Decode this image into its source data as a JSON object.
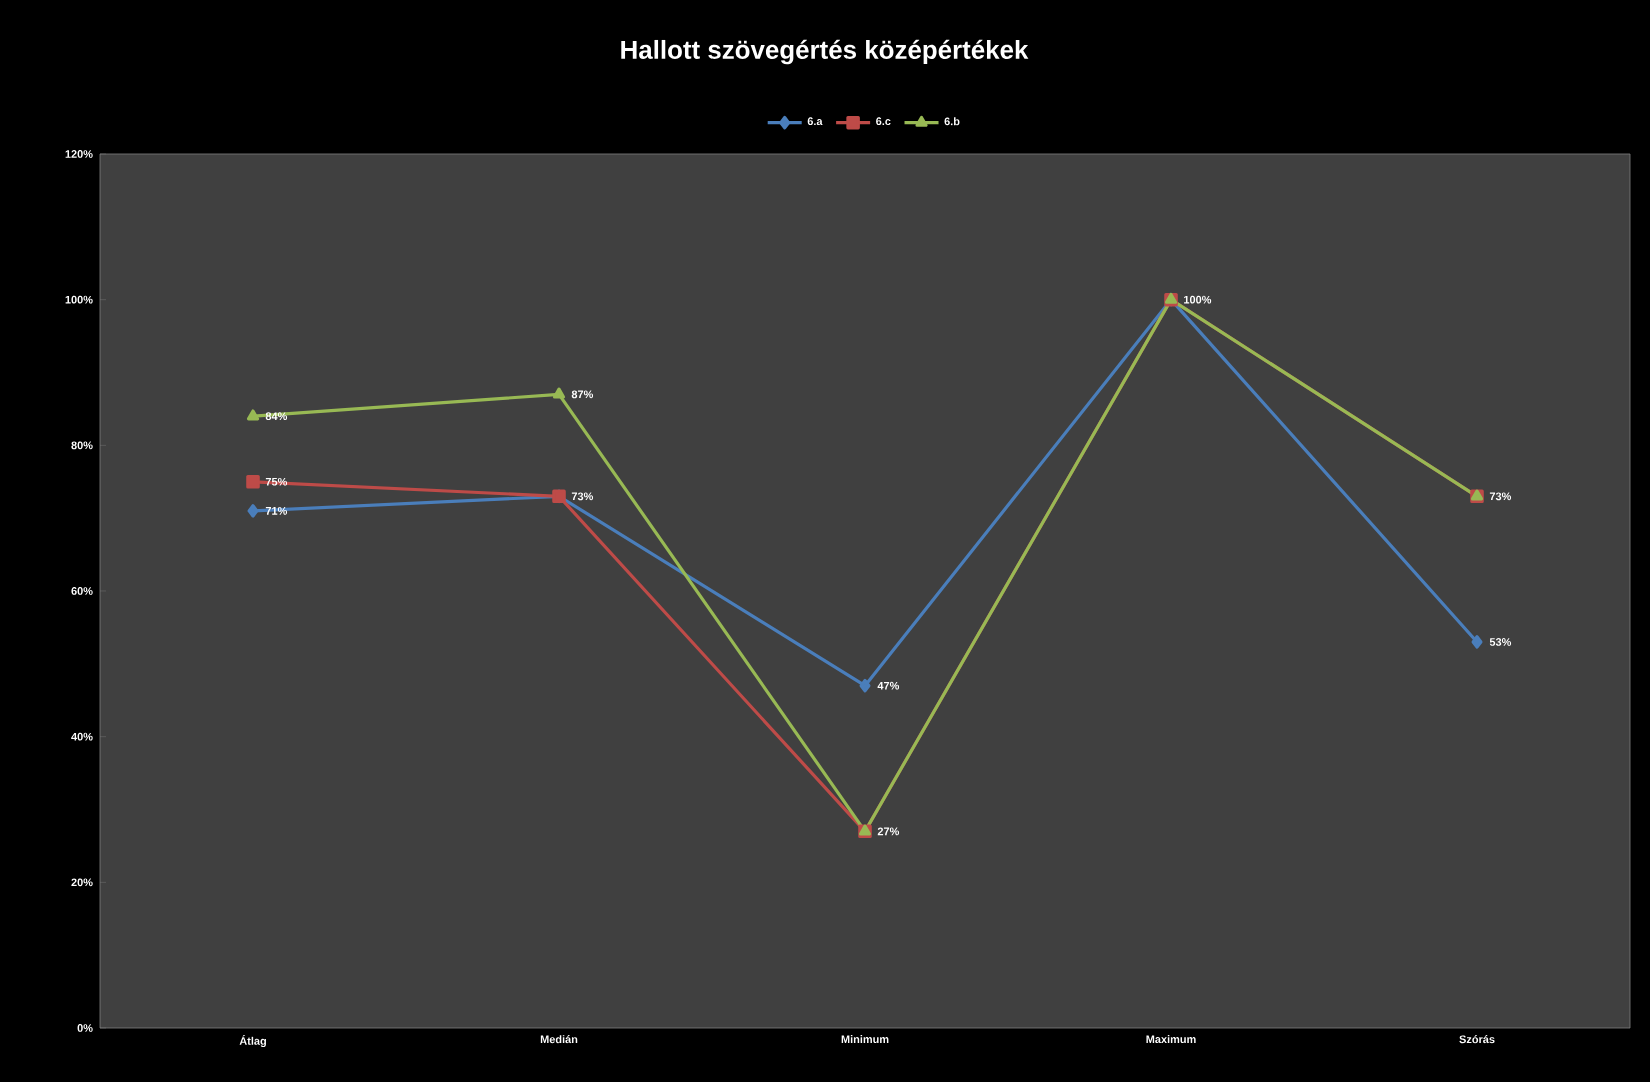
{
  "chart_data": {
    "type": "line",
    "title": "Hallott szövegértés középértékek",
    "categories": [
      "Átlag",
      "Medián",
      "Minimum",
      "Maximum",
      "Szórás"
    ],
    "series": [
      {
        "name": "6.a",
        "color": "#4a7ebb",
        "marker": "diamond",
        "values": [
          71,
          73,
          47,
          100,
          53
        ],
        "value_labels": [
          "71%",
          null,
          "47%",
          null,
          "53%"
        ]
      },
      {
        "name": "6.c",
        "color": "#be4b48",
        "marker": "square",
        "values": [
          75,
          73,
          27,
          100,
          73
        ],
        "value_labels": [
          "75%",
          "73%",
          null,
          null,
          null
        ]
      },
      {
        "name": "6.b",
        "color": "#98b954",
        "marker": "triangle",
        "values": [
          84,
          87,
          27,
          100,
          73
        ],
        "value_labels": [
          "84%",
          "87%",
          "27%",
          "100%",
          "73%"
        ]
      }
    ],
    "ylim": [
      0,
      120
    ],
    "yticks": [
      {
        "value": 0,
        "label": "0%"
      },
      {
        "value": 20,
        "label": "20%"
      },
      {
        "value": 40,
        "label": "40%"
      },
      {
        "value": 60,
        "label": "60%"
      },
      {
        "value": 80,
        "label": "80%"
      },
      {
        "value": 100,
        "label": "100%"
      },
      {
        "value": 120,
        "label": "120%"
      }
    ],
    "grid": false,
    "legend": "top"
  }
}
